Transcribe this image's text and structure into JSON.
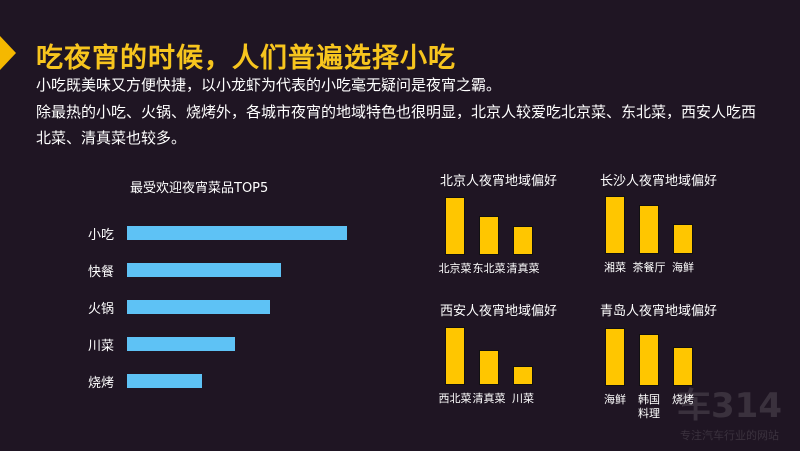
{
  "title": "吃夜宵的时候，人们普遍选择小吃",
  "paragraphs": [
    "小吃既美味又方便快捷，以小龙虾为代表的小吃毫无疑问是夜宵之霸。",
    "除最热的小吃、火锅、烧烤外，各城市夜宵的地域特色也很明显，北京人较爱吃北京菜、东北菜，西安人吃西",
    "北菜、清真菜也较多。"
  ],
  "watermark": {
    "brand": "车314",
    "slogan": "专注汽车行业的网站"
  },
  "chart_data": [
    {
      "type": "bar",
      "orientation": "horizontal",
      "title": "最受欢迎夜宵菜品TOP5",
      "categories": [
        "小吃",
        "快餐",
        "火锅",
        "川菜",
        "烧烤"
      ],
      "values": [
        100,
        70,
        65,
        49,
        34
      ],
      "color": "#5ec2f5"
    },
    {
      "type": "bar",
      "title": "北京人夜宵地域偏好",
      "categories": [
        "北京菜",
        "东北菜",
        "清真菜"
      ],
      "values": [
        100,
        67,
        50
      ],
      "color": "#ffc600"
    },
    {
      "type": "bar",
      "title": "长沙人夜宵地域偏好",
      "categories": [
        "湘菜",
        "茶餐厅",
        "海鲜"
      ],
      "values": [
        100,
        84,
        52
      ],
      "color": "#ffc600"
    },
    {
      "type": "bar",
      "title": "西安人夜宵地域偏好",
      "categories": [
        "西北菜",
        "清真菜",
        "川菜"
      ],
      "values": [
        100,
        60,
        33
      ],
      "color": "#ffc600"
    },
    {
      "type": "bar",
      "title": "青岛人夜宵地域偏好",
      "categories": [
        "海鲜",
        "韩国料理",
        "烧烤"
      ],
      "values": [
        100,
        90,
        68
      ],
      "color": "#ffc600"
    }
  ]
}
